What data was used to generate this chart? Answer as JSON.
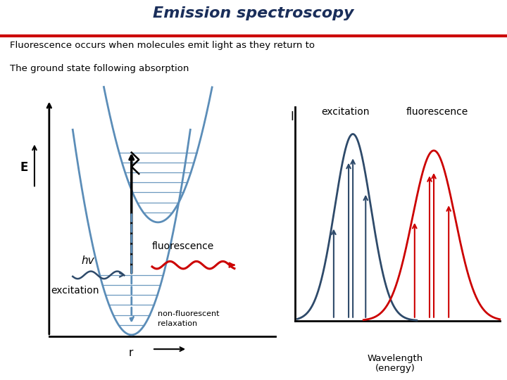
{
  "title": "Emission spectroscopy",
  "title_color": "#1a2e5a",
  "subtitle1": "Fluorescence occurs when molecules emit light as they return to",
  "subtitle2": "The ground state following absorption",
  "red_line_color": "#cc0000",
  "blue_curve_color": "#5b8db8",
  "dark_blue_color": "#2e4a6a",
  "red_color": "#cc0000",
  "excitation_label": "excitation",
  "fluorescence_label": "fluorescence",
  "hv_label": "hv",
  "nonfluor_label": "non-fluorescent\nrelaxation",
  "r_label": "r",
  "E_label": "E",
  "I_label": "I",
  "wavelength_label": "Wavelength\n(energy)"
}
